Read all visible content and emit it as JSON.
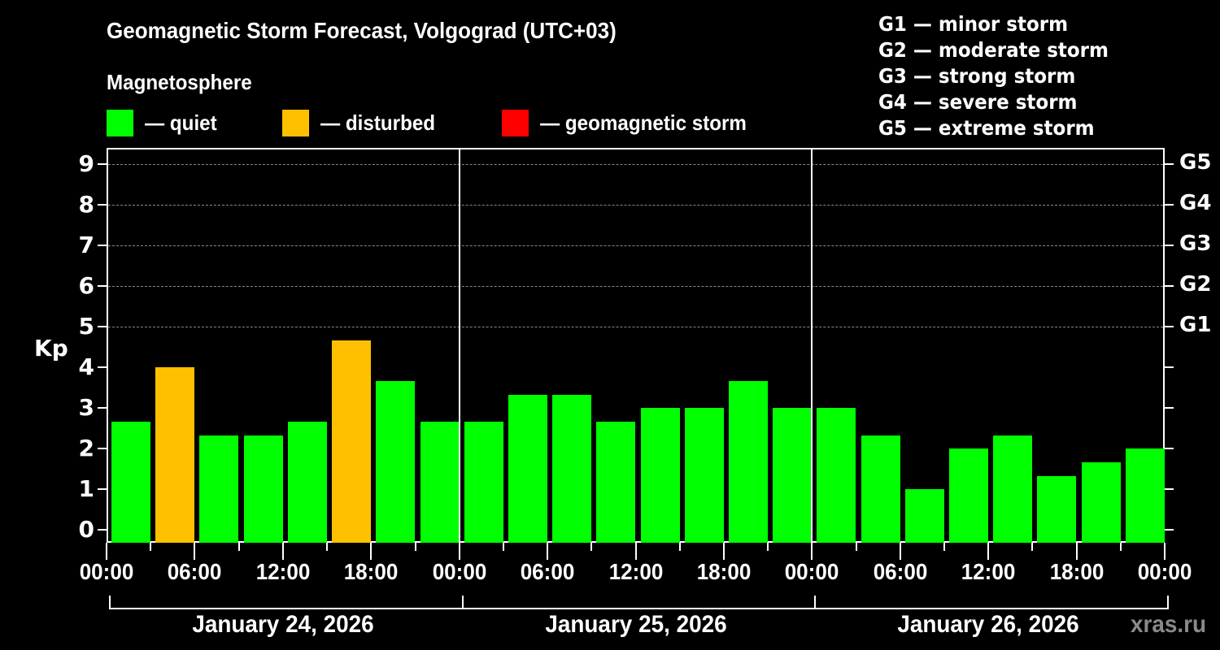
{
  "header": {
    "title": "Geomagnetic Storm Forecast, Volgograd (UTC+03)",
    "subtitle": "Magnetosphere"
  },
  "legend": [
    {
      "label": "— quiet",
      "color": "#00ff00"
    },
    {
      "label": "— disturbed",
      "color": "#ffc000"
    },
    {
      "label": "— geomagnetic storm",
      "color": "#ff0000"
    }
  ],
  "g_scale": [
    "G1 — minor storm",
    "G2 — moderate storm",
    "G3 — strong storm",
    "G4 — severe storm",
    "G5 — extreme storm"
  ],
  "axes": {
    "ylabel": "Kp",
    "yticks": [
      "0",
      "1",
      "2",
      "3",
      "4",
      "5",
      "6",
      "7",
      "8",
      "9"
    ],
    "right_ticks": [
      "G1",
      "G2",
      "G3",
      "G4",
      "G5"
    ],
    "xticks": [
      "00:00",
      "06:00",
      "12:00",
      "18:00",
      "00:00",
      "06:00",
      "12:00",
      "18:00",
      "00:00",
      "06:00",
      "12:00",
      "18:00",
      "00:00"
    ],
    "days": [
      "January 24, 2026",
      "January 25, 2026",
      "January 26, 2026"
    ]
  },
  "watermark": "xras.ru",
  "chart_data": {
    "type": "bar",
    "title": "Geomagnetic Storm Forecast, Volgograd (UTC+03)",
    "xlabel": "",
    "ylabel": "Kp",
    "ylim": [
      0,
      9
    ],
    "grid": "dashed horizontal at Kp 5-9",
    "legend_position": "top",
    "categories": [
      "Jan 24 00:00",
      "Jan 24 03:00",
      "Jan 24 06:00",
      "Jan 24 09:00",
      "Jan 24 12:00",
      "Jan 24 15:00",
      "Jan 24 18:00",
      "Jan 24 21:00",
      "Jan 25 00:00",
      "Jan 25 03:00",
      "Jan 25 06:00",
      "Jan 25 09:00",
      "Jan 25 12:00",
      "Jan 25 15:00",
      "Jan 25 18:00",
      "Jan 25 21:00",
      "Jan 26 00:00",
      "Jan 26 03:00",
      "Jan 26 06:00",
      "Jan 26 09:00",
      "Jan 26 12:00",
      "Jan 26 15:00",
      "Jan 26 18:00",
      "Jan 26 21:00"
    ],
    "values": [
      2.67,
      4.0,
      2.33,
      2.33,
      2.67,
      4.67,
      3.67,
      2.67,
      2.67,
      3.33,
      3.33,
      2.67,
      3.0,
      3.0,
      3.67,
      3.0,
      3.0,
      2.33,
      1.0,
      2.0,
      2.33,
      1.33,
      1.67,
      2.0
    ],
    "status": [
      "quiet",
      "disturbed",
      "quiet",
      "quiet",
      "quiet",
      "disturbed",
      "quiet",
      "quiet",
      "quiet",
      "quiet",
      "quiet",
      "quiet",
      "quiet",
      "quiet",
      "quiet",
      "quiet",
      "quiet",
      "quiet",
      "quiet",
      "quiet",
      "quiet",
      "quiet",
      "quiet",
      "quiet"
    ],
    "colors": {
      "quiet": "#00ff00",
      "disturbed": "#ffc000",
      "storm": "#ff0000"
    }
  }
}
